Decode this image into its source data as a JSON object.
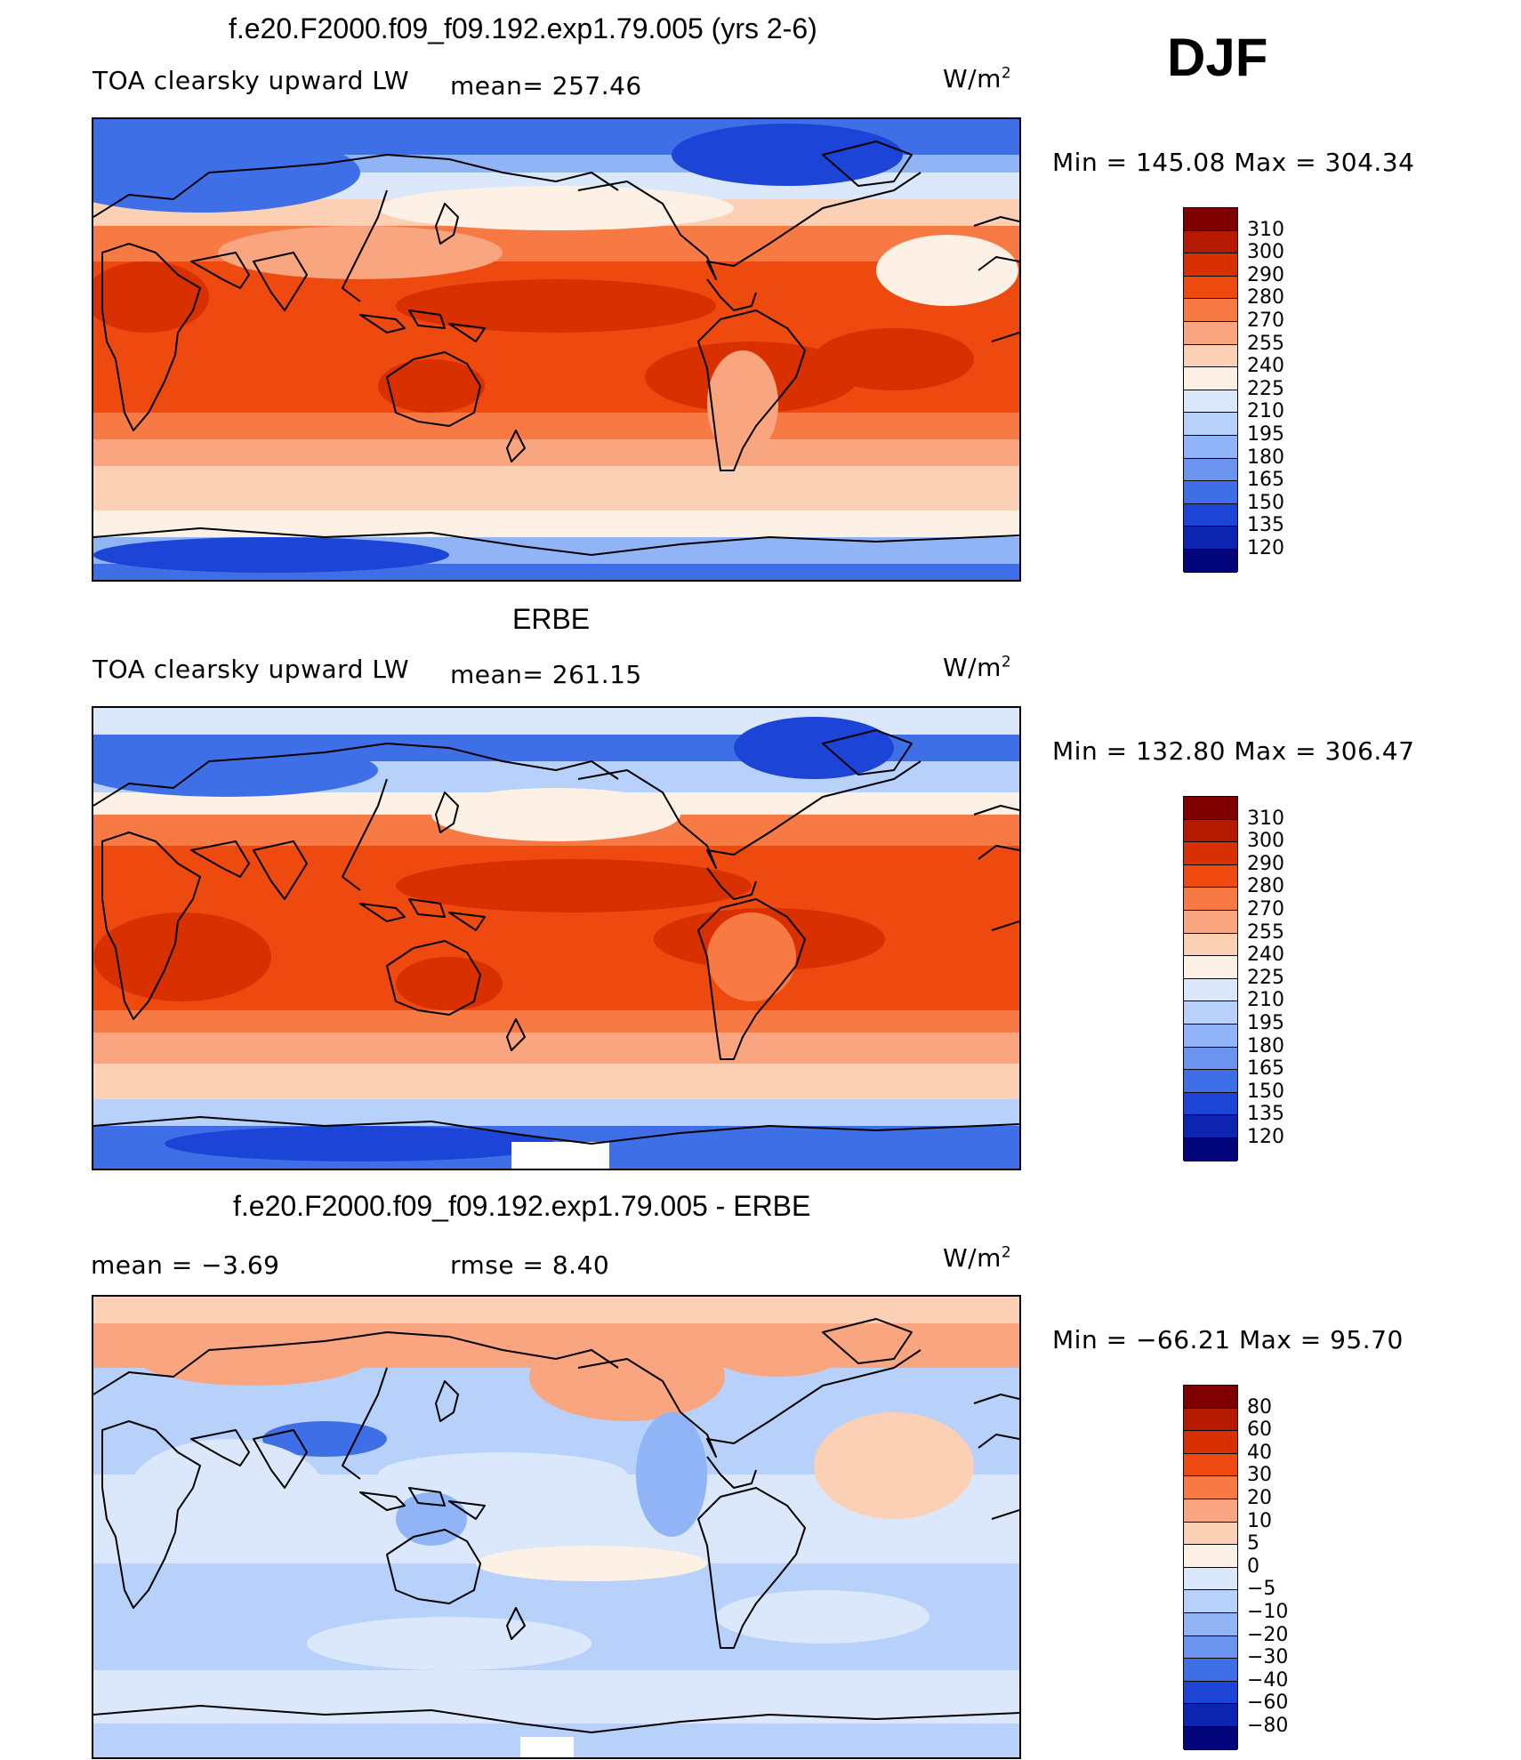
{
  "season": "DJF",
  "panels": [
    {
      "title": "f.e20.F2000.f09_f09.192.exp1.79.005 (yrs 2-6)",
      "field": "TOA clearsky upward LW",
      "stat_text": "mean= 257.46",
      "units_base": "W/m",
      "units_exp": "2",
      "minmax": "Min = 145.08 Max = 304.34",
      "kind": "abs"
    },
    {
      "title": "ERBE",
      "field": "TOA clearsky upward LW",
      "stat_text": "mean= 261.15",
      "units_base": "W/m",
      "units_exp": "2",
      "minmax": "Min = 132.80 Max = 306.47",
      "kind": "abs2"
    },
    {
      "title": "f.e20.F2000.f09_f09.192.exp1.79.005 - ERBE",
      "mean_text": "mean =   −3.69",
      "rmse_text": "rmse =    8.40",
      "units_base": "W/m",
      "units_exp": "2",
      "minmax": "Min = −66.21 Max =  95.70",
      "kind": "diff"
    }
  ],
  "colorbar_abs": {
    "labels": [
      "310",
      "300",
      "290",
      "280",
      "270",
      "255",
      "240",
      "225",
      "210",
      "195",
      "180",
      "165",
      "150",
      "135",
      "120"
    ],
    "colors": [
      "#7f0000",
      "#b51a00",
      "#d83000",
      "#ee4a10",
      "#f77a45",
      "#f9a580",
      "#fbd0b5",
      "#fdf0e4",
      "#dbe8fb",
      "#b8d1fb",
      "#90b4f5",
      "#6a94ee",
      "#3e6fe6",
      "#1c45d8",
      "#0d24b0",
      "#03067a"
    ]
  },
  "colorbar_diff": {
    "labels": [
      "80",
      "60",
      "40",
      "30",
      "20",
      "10",
      "5",
      "0",
      "−5",
      "−10",
      "−20",
      "−30",
      "−40",
      "−60",
      "−80"
    ],
    "colors": [
      "#7f0000",
      "#b51a00",
      "#d83000",
      "#ee4a10",
      "#f77a45",
      "#f9a580",
      "#fbd0b5",
      "#fdf0e4",
      "#dbe8fb",
      "#b8d1fb",
      "#90b4f5",
      "#6a94ee",
      "#3e6fe6",
      "#1c45d8",
      "#0d24b0",
      "#03067a"
    ]
  },
  "map_colors": {
    "hot_dark": "#d83000",
    "hot": "#ee4a10",
    "warm": "#f77a45",
    "warm_light": "#f9a580",
    "peach": "#fbd0b5",
    "cream": "#fdf0e4",
    "pale_blue": "#dbe8fb",
    "light_blue": "#b8d1fb",
    "mid_blue": "#90b4f5",
    "blue": "#6a94ee",
    "deep_blue": "#3e6fe6",
    "navy": "#1c45d8"
  }
}
